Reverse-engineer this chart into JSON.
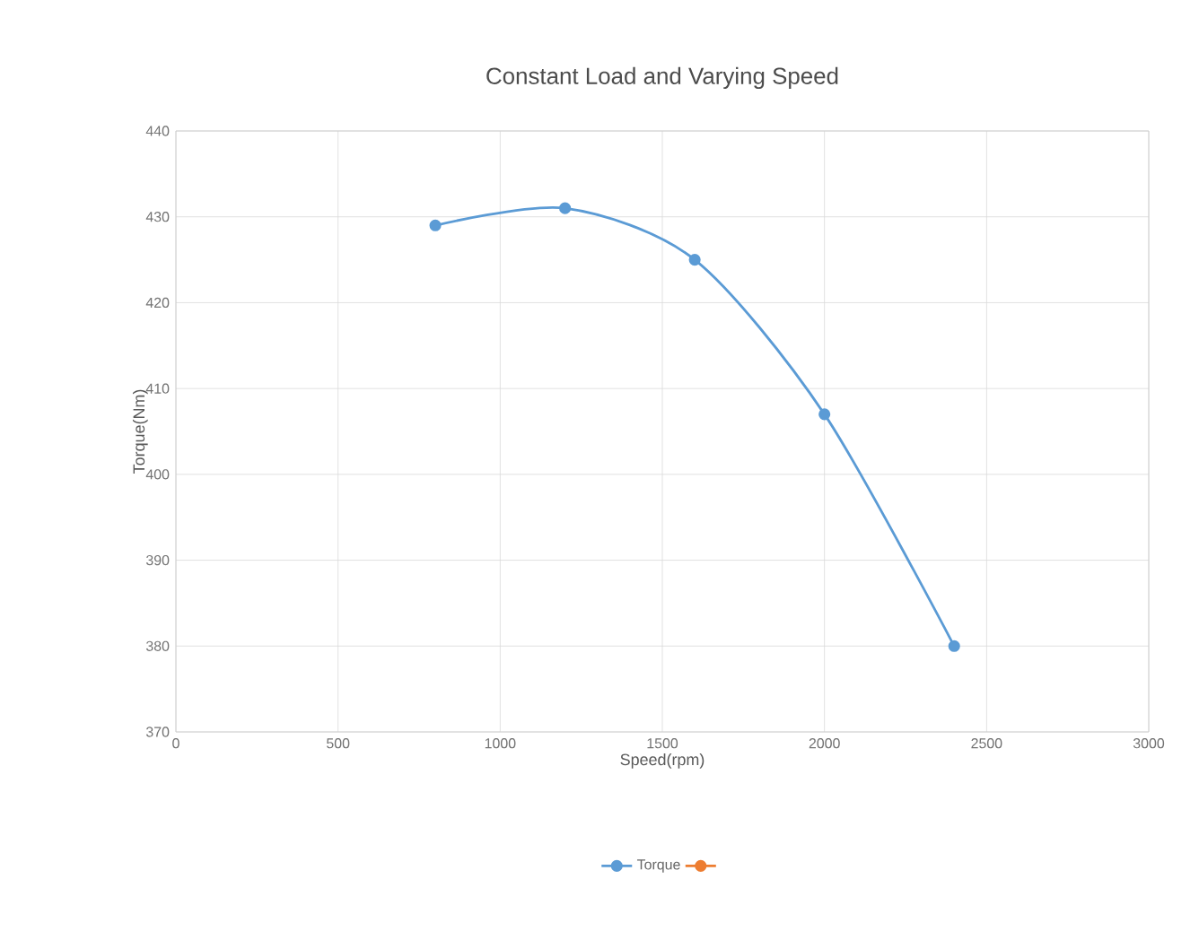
{
  "chart_data": {
    "type": "line",
    "title": "Constant Load and Varying Speed",
    "xlabel": "Speed(rpm)",
    "ylabel": "Torque(Nm)",
    "x": [
      800,
      1200,
      1600,
      2000,
      2400
    ],
    "series": [
      {
        "name": "Torque",
        "color": "#5b9bd5",
        "values": [
          429,
          431,
          425,
          407,
          380
        ]
      },
      {
        "color": "#ed7d31",
        "values": [
          null,
          null,
          null,
          null,
          null
        ]
      }
    ],
    "xlim": [
      0,
      3000
    ],
    "xticks": [
      0,
      500,
      1000,
      1500,
      2000,
      2500,
      3000
    ],
    "ylim": [
      370,
      440
    ],
    "yticks": [
      370,
      380,
      390,
      400,
      410,
      420,
      430,
      440
    ],
    "grid": true,
    "legend": "bottom",
    "marker": "circle"
  }
}
